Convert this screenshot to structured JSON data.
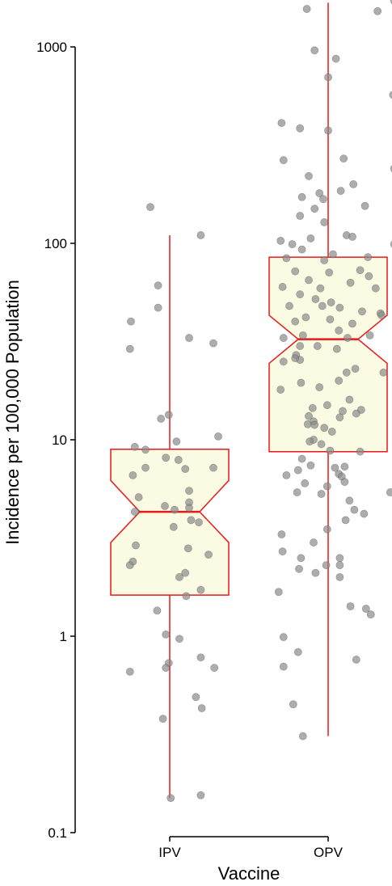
{
  "chart_data": {
    "type": "box",
    "scale": "log10",
    "xlabel": "Vaccine",
    "ylabel": "Incidence per 100,000 Population",
    "ylim": [
      0.1,
      1700
    ],
    "y_ticks": [
      {
        "value": 0.1,
        "label": "0.1"
      },
      {
        "value": 1,
        "label": "1"
      },
      {
        "value": 10,
        "label": "10"
      },
      {
        "value": 100,
        "label": "100"
      },
      {
        "value": 1000,
        "label": "1000"
      }
    ],
    "categories": [
      "IPV",
      "OPV"
    ],
    "grid": false,
    "legend": "none",
    "colors": {
      "box_line": "#e8191c",
      "box_fill": "#fbfbe4",
      "point": "#8a8a8a",
      "axis": "#000000"
    },
    "boxes": [
      {
        "category": "IPV",
        "whisker_low": 0.15,
        "q1": 1.62,
        "median": 4.3,
        "q3": 8.95,
        "whisker_high": 110,
        "notch_low": 3.0,
        "notch_high": 6.2
      },
      {
        "category": "OPV",
        "whisker_low": 0.31,
        "q1": 8.7,
        "median": 32.5,
        "q3": 85,
        "whisker_high": 1680,
        "notch_low": 24.5,
        "notch_high": 43
      }
    ],
    "points": [
      {
        "category": "IPV",
        "jitter": -0.2,
        "y": 153
      },
      {
        "category": "IPV",
        "jitter": 0.32,
        "y": 110
      },
      {
        "category": "IPV",
        "jitter": -0.12,
        "y": 61
      },
      {
        "category": "IPV",
        "jitter": -0.12,
        "y": 47
      },
      {
        "category": "IPV",
        "jitter": -0.4,
        "y": 40
      },
      {
        "category": "IPV",
        "jitter": 0.2,
        "y": 33
      },
      {
        "category": "IPV",
        "jitter": 0.45,
        "y": 31
      },
      {
        "category": "IPV",
        "jitter": -0.41,
        "y": 29
      },
      {
        "category": "IPV",
        "jitter": -0.01,
        "y": 13.4
      },
      {
        "category": "IPV",
        "jitter": -0.09,
        "y": 12.8
      },
      {
        "category": "IPV",
        "jitter": 0.5,
        "y": 10.4
      },
      {
        "category": "IPV",
        "jitter": 0.07,
        "y": 9.8
      },
      {
        "category": "IPV",
        "jitter": -0.36,
        "y": 9.2
      },
      {
        "category": "IPV",
        "jitter": -0.25,
        "y": 8.9
      },
      {
        "category": "IPV",
        "jitter": -0.04,
        "y": 8.1
      },
      {
        "category": "IPV",
        "jitter": 0.09,
        "y": 7.9
      },
      {
        "category": "IPV",
        "jitter": -0.25,
        "y": 7.2
      },
      {
        "category": "IPV",
        "jitter": 0.16,
        "y": 7.1
      },
      {
        "category": "IPV",
        "jitter": 0.45,
        "y": 7.2
      },
      {
        "category": "IPV",
        "jitter": -0.38,
        "y": 6.6
      },
      {
        "category": "IPV",
        "jitter": 0.2,
        "y": 5.5
      },
      {
        "category": "IPV",
        "jitter": -0.32,
        "y": 5.1
      },
      {
        "category": "IPV",
        "jitter": 0.2,
        "y": 4.8
      },
      {
        "category": "IPV",
        "jitter": 0.2,
        "y": 4.5
      },
      {
        "category": "IPV",
        "jitter": -0.36,
        "y": 4.3
      },
      {
        "category": "IPV",
        "jitter": 0.05,
        "y": 4.4
      },
      {
        "category": "IPV",
        "jitter": -0.05,
        "y": 4.6
      },
      {
        "category": "IPV",
        "jitter": 0.22,
        "y": 3.9
      },
      {
        "category": "IPV",
        "jitter": 0.3,
        "y": 3.8
      },
      {
        "category": "IPV",
        "jitter": 0.04,
        "y": 3.6
      },
      {
        "category": "IPV",
        "jitter": -0.35,
        "y": 2.9
      },
      {
        "category": "IPV",
        "jitter": 0.19,
        "y": 2.8
      },
      {
        "category": "IPV",
        "jitter": 0.4,
        "y": 2.6
      },
      {
        "category": "IPV",
        "jitter": -0.38,
        "y": 2.4
      },
      {
        "category": "IPV",
        "jitter": -0.41,
        "y": 2.3
      },
      {
        "category": "IPV",
        "jitter": 0.16,
        "y": 2.1
      },
      {
        "category": "IPV",
        "jitter": 0.1,
        "y": 2.0
      },
      {
        "category": "IPV",
        "jitter": 0.32,
        "y": 1.72
      },
      {
        "category": "IPV",
        "jitter": 0.17,
        "y": 1.6
      },
      {
        "category": "IPV",
        "jitter": -0.13,
        "y": 1.35
      },
      {
        "category": "IPV",
        "jitter": -0.04,
        "y": 1.02
      },
      {
        "category": "IPV",
        "jitter": 0.1,
        "y": 0.97
      },
      {
        "category": "IPV",
        "jitter": 0.32,
        "y": 0.78
      },
      {
        "category": "IPV",
        "jitter": -0.01,
        "y": 0.73
      },
      {
        "category": "IPV",
        "jitter": -0.04,
        "y": 0.69
      },
      {
        "category": "IPV",
        "jitter": 0.46,
        "y": 0.69
      },
      {
        "category": "IPV",
        "jitter": -0.41,
        "y": 0.66
      },
      {
        "category": "IPV",
        "jitter": 0.27,
        "y": 0.49
      },
      {
        "category": "IPV",
        "jitter": 0.33,
        "y": 0.43
      },
      {
        "category": "IPV",
        "jitter": -0.07,
        "y": 0.38
      },
      {
        "category": "IPV",
        "jitter": 0.01,
        "y": 0.15
      },
      {
        "category": "IPV",
        "jitter": 0.32,
        "y": 0.155
      },
      {
        "category": "OPV",
        "jitter": 0.68,
        "y": 1720
      },
      {
        "category": "OPV",
        "jitter": -0.22,
        "y": 1560
      },
      {
        "category": "OPV",
        "jitter": 0.51,
        "y": 1520
      },
      {
        "category": "OPV",
        "jitter": -0.14,
        "y": 960
      },
      {
        "category": "OPV",
        "jitter": 0.08,
        "y": 870
      },
      {
        "category": "OPV",
        "jitter": 0.0,
        "y": 700
      },
      {
        "category": "OPV",
        "jitter": 0.67,
        "y": 570
      },
      {
        "category": "OPV",
        "jitter": -0.48,
        "y": 410
      },
      {
        "category": "OPV",
        "jitter": -0.29,
        "y": 385
      },
      {
        "category": "OPV",
        "jitter": 0.0,
        "y": 375
      },
      {
        "category": "OPV",
        "jitter": -0.46,
        "y": 265
      },
      {
        "category": "OPV",
        "jitter": 0.16,
        "y": 270
      },
      {
        "category": "OPV",
        "jitter": 0.68,
        "y": 240
      },
      {
        "category": "OPV",
        "jitter": -0.2,
        "y": 220
      },
      {
        "category": "OPV",
        "jitter": 0.26,
        "y": 200
      },
      {
        "category": "OPV",
        "jitter": 0.13,
        "y": 185
      },
      {
        "category": "OPV",
        "jitter": -0.09,
        "y": 180
      },
      {
        "category": "OPV",
        "jitter": -0.27,
        "y": 172
      },
      {
        "category": "OPV",
        "jitter": -0.05,
        "y": 168
      },
      {
        "category": "OPV",
        "jitter": -0.14,
        "y": 150
      },
      {
        "category": "OPV",
        "jitter": 0.38,
        "y": 155
      },
      {
        "category": "OPV",
        "jitter": -0.29,
        "y": 138
      },
      {
        "category": "OPV",
        "jitter": -0.04,
        "y": 128
      },
      {
        "category": "OPV",
        "jitter": 0.19,
        "y": 110
      },
      {
        "category": "OPV",
        "jitter": 0.25,
        "y": 108
      },
      {
        "category": "OPV",
        "jitter": -0.49,
        "y": 103
      },
      {
        "category": "OPV",
        "jitter": -0.18,
        "y": 106
      },
      {
        "category": "OPV",
        "jitter": -0.37,
        "y": 99
      },
      {
        "category": "OPV",
        "jitter": 0.68,
        "y": 99
      },
      {
        "category": "OPV",
        "jitter": -0.27,
        "y": 93
      },
      {
        "category": "OPV",
        "jitter": 0.05,
        "y": 88
      },
      {
        "category": "OPV",
        "jitter": -0.43,
        "y": 84
      },
      {
        "category": "OPV",
        "jitter": 0.41,
        "y": 85
      },
      {
        "category": "OPV",
        "jitter": -0.04,
        "y": 82
      },
      {
        "category": "OPV",
        "jitter": -0.34,
        "y": 72
      },
      {
        "category": "OPV",
        "jitter": 0.01,
        "y": 71
      },
      {
        "category": "OPV",
        "jitter": 0.33,
        "y": 73
      },
      {
        "category": "OPV",
        "jitter": 0.42,
        "y": 68
      },
      {
        "category": "OPV",
        "jitter": -0.2,
        "y": 65
      },
      {
        "category": "OPV",
        "jitter": 0.23,
        "y": 63
      },
      {
        "category": "OPV",
        "jitter": -0.47,
        "y": 60
      },
      {
        "category": "OPV",
        "jitter": -0.08,
        "y": 59
      },
      {
        "category": "OPV",
        "jitter": 0.49,
        "y": 59
      },
      {
        "category": "OPV",
        "jitter": -0.29,
        "y": 55
      },
      {
        "category": "OPV",
        "jitter": -0.13,
        "y": 52
      },
      {
        "category": "OPV",
        "jitter": 0.03,
        "y": 50
      },
      {
        "category": "OPV",
        "jitter": -0.4,
        "y": 48
      },
      {
        "category": "OPV",
        "jitter": -0.06,
        "y": 48
      },
      {
        "category": "OPV",
        "jitter": 0.12,
        "y": 47
      },
      {
        "category": "OPV",
        "jitter": 0.35,
        "y": 45
      },
      {
        "category": "OPV",
        "jitter": 0.54,
        "y": 44
      },
      {
        "category": "OPV",
        "jitter": 0.55,
        "y": 43
      },
      {
        "category": "OPV",
        "jitter": -0.23,
        "y": 42
      },
      {
        "category": "OPV",
        "jitter": -0.34,
        "y": 40
      },
      {
        "category": "OPV",
        "jitter": 0.02,
        "y": 41
      },
      {
        "category": "OPV",
        "jitter": 0.25,
        "y": 39
      },
      {
        "category": "OPV",
        "jitter": -0.26,
        "y": 34
      },
      {
        "category": "OPV",
        "jitter": 0.11,
        "y": 36
      },
      {
        "category": "OPV",
        "jitter": 0.43,
        "y": 34
      },
      {
        "category": "OPV",
        "jitter": -0.46,
        "y": 33
      },
      {
        "category": "OPV",
        "jitter": 0.2,
        "y": 33
      },
      {
        "category": "OPV",
        "jitter": -0.29,
        "y": 30
      },
      {
        "category": "OPV",
        "jitter": -0.11,
        "y": 30
      },
      {
        "category": "OPV",
        "jitter": 0.09,
        "y": 29
      },
      {
        "category": "OPV",
        "jitter": -0.33,
        "y": 27
      },
      {
        "category": "OPV",
        "jitter": -0.29,
        "y": 25.5
      },
      {
        "category": "OPV",
        "jitter": -0.46,
        "y": 25
      },
      {
        "category": "OPV",
        "jitter": -0.34,
        "y": 26
      },
      {
        "category": "OPV",
        "jitter": 0.28,
        "y": 23
      },
      {
        "category": "OPV",
        "jitter": 0.19,
        "y": 22
      },
      {
        "category": "OPV",
        "jitter": 0.57,
        "y": 22
      },
      {
        "category": "OPV",
        "jitter": 0.11,
        "y": 20
      },
      {
        "category": "OPV",
        "jitter": -0.28,
        "y": 19.5
      },
      {
        "category": "OPV",
        "jitter": -0.09,
        "y": 18.5
      },
      {
        "category": "OPV",
        "jitter": -0.49,
        "y": 18
      },
      {
        "category": "OPV",
        "jitter": 0.22,
        "y": 16
      },
      {
        "category": "OPV",
        "jitter": -0.01,
        "y": 15
      },
      {
        "category": "OPV",
        "jitter": 0.15,
        "y": 14
      },
      {
        "category": "OPV",
        "jitter": -0.16,
        "y": 14.5
      },
      {
        "category": "OPV",
        "jitter": 0.34,
        "y": 14.2
      },
      {
        "category": "OPV",
        "jitter": 0.29,
        "y": 13.6
      },
      {
        "category": "OPV",
        "jitter": -0.2,
        "y": 13.2
      },
      {
        "category": "OPV",
        "jitter": 0.12,
        "y": 13
      },
      {
        "category": "OPV",
        "jitter": -0.15,
        "y": 12.4
      },
      {
        "category": "OPV",
        "jitter": -0.21,
        "y": 12
      },
      {
        "category": "OPV",
        "jitter": -0.14,
        "y": 11.9
      },
      {
        "category": "OPV",
        "jitter": -0.04,
        "y": 11.5
      },
      {
        "category": "OPV",
        "jitter": 0.04,
        "y": 11
      },
      {
        "category": "OPV",
        "jitter": -0.15,
        "y": 10
      },
      {
        "category": "OPV",
        "jitter": -0.19,
        "y": 9.8
      },
      {
        "category": "OPV",
        "jitter": -0.07,
        "y": 9.5
      },
      {
        "category": "OPV",
        "jitter": 0.02,
        "y": 8.8
      },
      {
        "category": "OPV",
        "jitter": 0.33,
        "y": 8.7
      },
      {
        "category": "OPV",
        "jitter": -0.27,
        "y": 8.0
      },
      {
        "category": "OPV",
        "jitter": -0.18,
        "y": 7.4
      },
      {
        "category": "OPV",
        "jitter": 0.07,
        "y": 7.2
      },
      {
        "category": "OPV",
        "jitter": -0.31,
        "y": 7.0
      },
      {
        "category": "OPV",
        "jitter": 0.17,
        "y": 7.3
      },
      {
        "category": "OPV",
        "jitter": -0.43,
        "y": 6.6
      },
      {
        "category": "OPV",
        "jitter": 0.11,
        "y": 6.7
      },
      {
        "category": "OPV",
        "jitter": 0.14,
        "y": 6.5
      },
      {
        "category": "OPV",
        "jitter": -0.24,
        "y": 6.0
      },
      {
        "category": "OPV",
        "jitter": 0.17,
        "y": 6.1
      },
      {
        "category": "OPV",
        "jitter": -0.01,
        "y": 5.8
      },
      {
        "category": "OPV",
        "jitter": -0.32,
        "y": 5.4
      },
      {
        "category": "OPV",
        "jitter": -0.07,
        "y": 5.3
      },
      {
        "category": "OPV",
        "jitter": 0.22,
        "y": 4.9
      },
      {
        "category": "OPV",
        "jitter": 0.27,
        "y": 4.4
      },
      {
        "category": "OPV",
        "jitter": 0.64,
        "y": 5.4
      },
      {
        "category": "OPV",
        "jitter": 0.37,
        "y": 4.2
      },
      {
        "category": "OPV",
        "jitter": 0.18,
        "y": 3.9
      },
      {
        "category": "OPV",
        "jitter": -0.01,
        "y": 3.5
      },
      {
        "category": "OPV",
        "jitter": -0.48,
        "y": 3.3
      },
      {
        "category": "OPV",
        "jitter": -0.15,
        "y": 3.0
      },
      {
        "category": "OPV",
        "jitter": -0.47,
        "y": 2.7
      },
      {
        "category": "OPV",
        "jitter": 0.12,
        "y": 2.5
      },
      {
        "category": "OPV",
        "jitter": -0.28,
        "y": 2.5
      },
      {
        "category": "OPV",
        "jitter": 0.12,
        "y": 2.3
      },
      {
        "category": "OPV",
        "jitter": -0.02,
        "y": 2.3
      },
      {
        "category": "OPV",
        "jitter": -0.3,
        "y": 2.2
      },
      {
        "category": "OPV",
        "jitter": -0.13,
        "y": 2.1
      },
      {
        "category": "OPV",
        "jitter": 0.12,
        "y": 2.0
      },
      {
        "category": "OPV",
        "jitter": -0.51,
        "y": 1.68
      },
      {
        "category": "OPV",
        "jitter": 0.23,
        "y": 1.42
      },
      {
        "category": "OPV",
        "jitter": 0.39,
        "y": 1.38
      },
      {
        "category": "OPV",
        "jitter": 0.44,
        "y": 1.29
      },
      {
        "category": "OPV",
        "jitter": -0.46,
        "y": 0.99
      },
      {
        "category": "OPV",
        "jitter": -0.31,
        "y": 0.83
      },
      {
        "category": "OPV",
        "jitter": 0.29,
        "y": 0.76
      },
      {
        "category": "OPV",
        "jitter": -0.46,
        "y": 0.7
      },
      {
        "category": "OPV",
        "jitter": -0.36,
        "y": 0.45
      },
      {
        "category": "OPV",
        "jitter": -0.26,
        "y": 0.31
      }
    ]
  }
}
